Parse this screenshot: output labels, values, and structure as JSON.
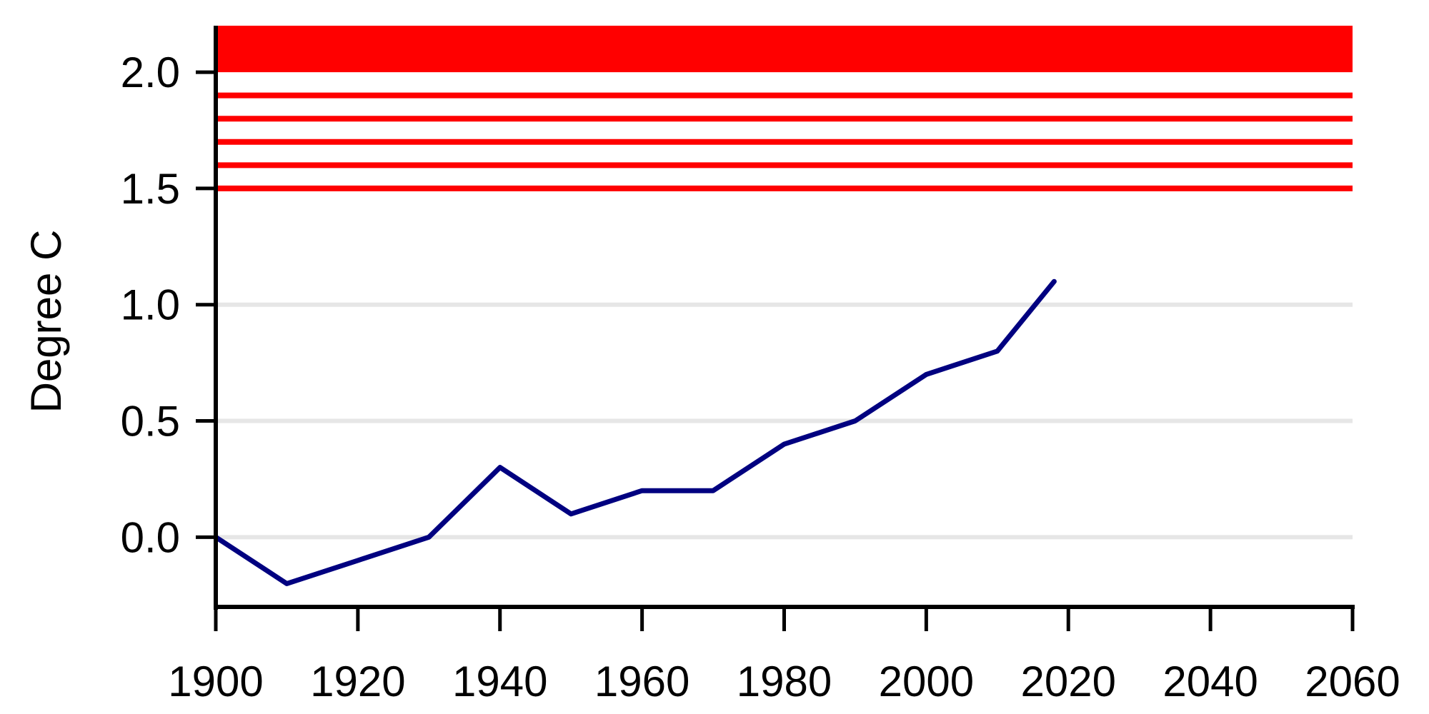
{
  "chart_data": {
    "type": "line",
    "title": "",
    "xlabel": "",
    "ylabel": "Degree C",
    "xlim": [
      1900,
      2060
    ],
    "ylim": [
      -0.3,
      2.2
    ],
    "x_ticks": [
      1900,
      1920,
      1940,
      1960,
      1980,
      2000,
      2020,
      2040,
      2060
    ],
    "y_ticks": [
      0.0,
      0.5,
      1.0,
      1.5,
      2.0
    ],
    "y_tick_labels": [
      "0.0",
      "0.5",
      "1.0",
      "1.5",
      "2.0"
    ],
    "x_tick_labels": [
      "1900",
      "1920",
      "1940",
      "1960",
      "1980",
      "2000",
      "2020",
      "2040",
      "2060"
    ],
    "grid": {
      "horizontal": true,
      "values": [
        0.0,
        0.5,
        1.0
      ],
      "color": "#e6e6e6"
    },
    "series": [
      {
        "x": [
          1900,
          1910,
          1920,
          1930,
          1940,
          1950,
          1960,
          1970,
          1980,
          1990,
          2000,
          2010,
          2018
        ],
        "y": [
          0.0,
          -0.2,
          -0.1,
          0.0,
          0.3,
          0.1,
          0.2,
          0.2,
          0.4,
          0.5,
          0.7,
          0.8,
          1.1
        ],
        "color": "#000080"
      }
    ],
    "reference_lines": [
      {
        "y": 1.5,
        "color": "#ff0000"
      },
      {
        "y": 1.6,
        "color": "#ff0000"
      },
      {
        "y": 1.7,
        "color": "#ff0000"
      },
      {
        "y": 1.8,
        "color": "#ff0000"
      },
      {
        "y": 1.9,
        "color": "#ff0000"
      }
    ],
    "band": {
      "y_from": 2.0,
      "y_to": 2.2,
      "color": "#ff0000"
    },
    "legend": "none"
  }
}
